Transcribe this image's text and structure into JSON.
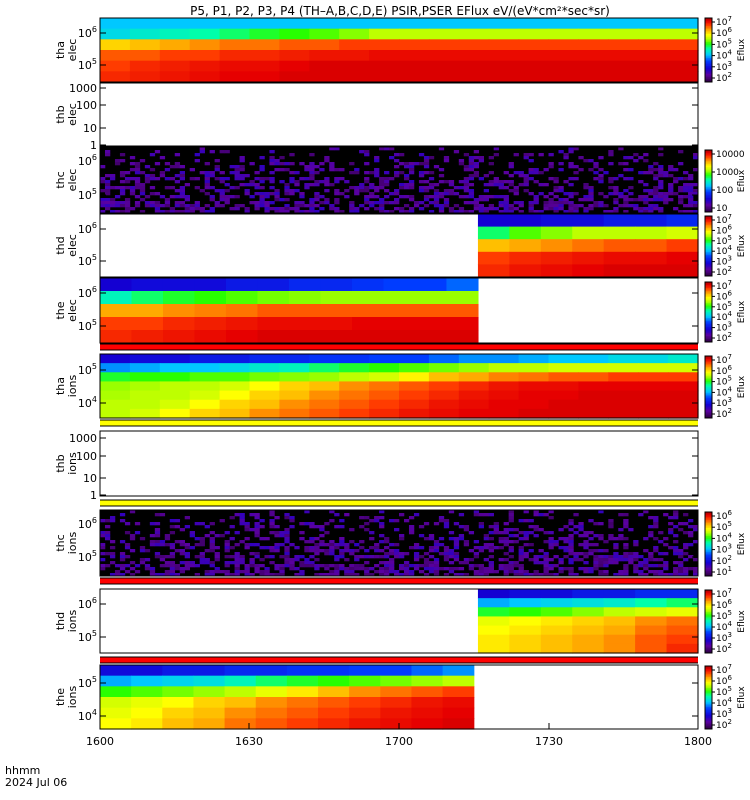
{
  "title": "P5, P1, P2, P3, P4 (TH–A,B,C,D,E) PSIR,PSER EFlux eV/(eV*cm²*sec*sr)",
  "x_axis": {
    "ticks": [
      "1600",
      "1630",
      "1700",
      "1730",
      "1800"
    ],
    "label_line1": "hhmm",
    "label_line2": "2024 Jul 06"
  },
  "chart_data": [
    {
      "type": "heatmap",
      "name": "tha-elec",
      "ylabel": [
        "tha",
        "elec"
      ],
      "ytick_labels": [
        {
          "m": "10",
          "e": "6"
        },
        {
          "m": "10",
          "e": "5"
        }
      ],
      "data_range": [
        0,
        1
      ],
      "colorbar_ticks": [
        {
          "m": "10",
          "e": "7"
        },
        {
          "m": "10",
          "e": "6"
        },
        {
          "m": "10",
          "e": "5"
        },
        {
          "m": "10",
          "e": "4"
        },
        {
          "m": "10",
          "e": "3"
        },
        {
          "m": "10",
          "e": "2"
        }
      ],
      "colorbar_label": "Eflux",
      "pattern": "smooth",
      "rows": [
        [
          0.42,
          0.42,
          0.42,
          0.42,
          0.42,
          0.42,
          0.42,
          0.42,
          0.42,
          0.42,
          0.42,
          0.42,
          0.42,
          0.42,
          0.42,
          0.42,
          0.42,
          0.42,
          0.42,
          0.42
        ],
        [
          0.45,
          0.48,
          0.5,
          0.52,
          0.55,
          0.58,
          0.6,
          0.62,
          0.65,
          0.68,
          0.68,
          0.68,
          0.68,
          0.68,
          0.68,
          0.68,
          0.68,
          0.68,
          0.68,
          0.68
        ],
        [
          0.78,
          0.8,
          0.82,
          0.84,
          0.86,
          0.86,
          0.88,
          0.88,
          0.9,
          0.9,
          0.9,
          0.9,
          0.9,
          0.9,
          0.9,
          0.9,
          0.9,
          0.9,
          0.9,
          0.9
        ],
        [
          0.88,
          0.88,
          0.9,
          0.9,
          0.92,
          0.92,
          0.93,
          0.94,
          0.94,
          0.95,
          0.95,
          0.95,
          0.95,
          0.95,
          0.95,
          0.95,
          0.95,
          0.95,
          0.95,
          0.95
        ],
        [
          0.9,
          0.92,
          0.93,
          0.94,
          0.95,
          0.95,
          0.96,
          0.97,
          0.97,
          0.97,
          0.97,
          0.97,
          0.97,
          0.97,
          0.97,
          0.97,
          0.97,
          0.97,
          0.97,
          0.97
        ],
        [
          0.92,
          0.93,
          0.94,
          0.95,
          0.96,
          0.96,
          0.97,
          0.97,
          0.97,
          0.97,
          0.97,
          0.97,
          0.97,
          0.97,
          0.97,
          0.97,
          0.97,
          0.97,
          0.97,
          0.97
        ]
      ]
    },
    {
      "type": "heatmap",
      "name": "thb-elec",
      "ylabel": [
        "thb",
        "elec"
      ],
      "ytick_labels": [
        {
          "m": "1000"
        },
        {
          "m": "100"
        },
        {
          "m": "10"
        },
        {
          "m": "1"
        }
      ],
      "pattern": "empty"
    },
    {
      "type": "heatmap",
      "name": "thc-elec",
      "ylabel": [
        "thc",
        "elec"
      ],
      "ytick_labels": [
        {
          "m": "10",
          "e": "6"
        },
        {
          "m": "10",
          "e": "5"
        }
      ],
      "colorbar_ticks": [
        {
          "m": "10000"
        },
        {
          "m": "1000"
        },
        {
          "m": "100"
        },
        {
          "m": "10"
        }
      ],
      "colorbar_label": "Eflux",
      "pattern": "noise"
    },
    {
      "type": "heatmap",
      "name": "thd-elec",
      "ylabel": [
        "thd",
        "elec"
      ],
      "ytick_labels": [
        {
          "m": "10",
          "e": "6"
        },
        {
          "m": "10",
          "e": "5"
        }
      ],
      "data_range": [
        0.632,
        1
      ],
      "colorbar_ticks": [
        {
          "m": "10",
          "e": "7"
        },
        {
          "m": "10",
          "e": "6"
        },
        {
          "m": "10",
          "e": "5"
        },
        {
          "m": "10",
          "e": "4"
        },
        {
          "m": "10",
          "e": "3"
        },
        {
          "m": "10",
          "e": "2"
        }
      ],
      "colorbar_label": "Eflux",
      "pattern": "smooth",
      "rows": [
        [
          0.2,
          0.2,
          0.22,
          0.22,
          0.25,
          0.25,
          0.28
        ],
        [
          0.55,
          0.62,
          0.65,
          0.68,
          0.68,
          0.68,
          0.7
        ],
        [
          0.8,
          0.82,
          0.84,
          0.86,
          0.88,
          0.88,
          0.9
        ],
        [
          0.9,
          0.92,
          0.93,
          0.94,
          0.95,
          0.95,
          0.96
        ],
        [
          0.92,
          0.94,
          0.95,
          0.96,
          0.97,
          0.97,
          0.97
        ]
      ]
    },
    {
      "type": "heatmap",
      "name": "the-elec",
      "ylabel": [
        "the",
        "elec"
      ],
      "ytick_labels": [
        {
          "m": "10",
          "e": "6"
        },
        {
          "m": "10",
          "e": "5"
        }
      ],
      "data_range": [
        0,
        0.632
      ],
      "colorbar_ticks": [
        {
          "m": "10",
          "e": "7"
        },
        {
          "m": "10",
          "e": "6"
        },
        {
          "m": "10",
          "e": "5"
        },
        {
          "m": "10",
          "e": "4"
        },
        {
          "m": "10",
          "e": "3"
        },
        {
          "m": "10",
          "e": "2"
        }
      ],
      "colorbar_label": "Eflux",
      "pattern": "smooth",
      "rows": [
        [
          0.2,
          0.22,
          0.22,
          0.22,
          0.25,
          0.25,
          0.28,
          0.28,
          0.3,
          0.32,
          0.32,
          0.35
        ],
        [
          0.5,
          0.55,
          0.58,
          0.6,
          0.62,
          0.64,
          0.65,
          0.66,
          0.66,
          0.66,
          0.66,
          0.66
        ],
        [
          0.82,
          0.82,
          0.84,
          0.85,
          0.86,
          0.88,
          0.88,
          0.88,
          0.88,
          0.88,
          0.88,
          0.88
        ],
        [
          0.9,
          0.9,
          0.92,
          0.93,
          0.94,
          0.95,
          0.95,
          0.95,
          0.96,
          0.96,
          0.96,
          0.96
        ],
        [
          0.92,
          0.93,
          0.94,
          0.95,
          0.96,
          0.97,
          0.97,
          0.97,
          0.97,
          0.97,
          0.97,
          0.97
        ]
      ]
    },
    {
      "type": "heatmap",
      "name": "tha-ions",
      "ylabel": [
        "tha",
        "ions"
      ],
      "ytick_labels": [
        {
          "m": "10",
          "e": "5"
        },
        {
          "m": "10",
          "e": "4"
        }
      ],
      "data_range": [
        0,
        1
      ],
      "colorbar_ticks": [
        {
          "m": "10",
          "e": "7"
        },
        {
          "m": "10",
          "e": "6"
        },
        {
          "m": "10",
          "e": "5"
        },
        {
          "m": "10",
          "e": "4"
        },
        {
          "m": "10",
          "e": "3"
        },
        {
          "m": "10",
          "e": "2"
        }
      ],
      "colorbar_label": "Eflux",
      "pattern": "smooth",
      "rows": [
        [
          0.2,
          0.22,
          0.22,
          0.25,
          0.25,
          0.28,
          0.28,
          0.3,
          0.3,
          0.32,
          0.32,
          0.35,
          0.38,
          0.38,
          0.4,
          0.42,
          0.42,
          0.45,
          0.45,
          0.48
        ],
        [
          0.38,
          0.4,
          0.42,
          0.42,
          0.45,
          0.48,
          0.5,
          0.55,
          0.58,
          0.6,
          0.62,
          0.64,
          0.66,
          0.68,
          0.68,
          0.7,
          0.7,
          0.7,
          0.7,
          0.7
        ],
        [
          0.58,
          0.6,
          0.6,
          0.62,
          0.62,
          0.64,
          0.65,
          0.66,
          0.68,
          0.7,
          0.75,
          0.8,
          0.82,
          0.85,
          0.86,
          0.88,
          0.88,
          0.9,
          0.9,
          0.9
        ],
        [
          0.66,
          0.67,
          0.68,
          0.68,
          0.7,
          0.74,
          0.78,
          0.8,
          0.84,
          0.86,
          0.88,
          0.9,
          0.92,
          0.94,
          0.95,
          0.95,
          0.96,
          0.96,
          0.96,
          0.96
        ],
        [
          0.67,
          0.68,
          0.68,
          0.7,
          0.74,
          0.78,
          0.8,
          0.84,
          0.86,
          0.88,
          0.9,
          0.92,
          0.94,
          0.95,
          0.96,
          0.96,
          0.97,
          0.97,
          0.97,
          0.97
        ],
        [
          0.68,
          0.68,
          0.7,
          0.74,
          0.78,
          0.8,
          0.84,
          0.86,
          0.88,
          0.9,
          0.92,
          0.94,
          0.95,
          0.96,
          0.96,
          0.97,
          0.97,
          0.97,
          0.97,
          0.97
        ],
        [
          0.68,
          0.7,
          0.74,
          0.78,
          0.8,
          0.84,
          0.86,
          0.88,
          0.9,
          0.92,
          0.94,
          0.95,
          0.96,
          0.96,
          0.97,
          0.97,
          0.97,
          0.97,
          0.97,
          0.97
        ]
      ]
    },
    {
      "type": "heatmap",
      "name": "thb-ions",
      "ylabel": [
        "thb",
        "ions"
      ],
      "ytick_labels": [
        {
          "m": "1000"
        },
        {
          "m": "100"
        },
        {
          "m": "10"
        },
        {
          "m": "1"
        }
      ],
      "pattern": "empty"
    },
    {
      "type": "heatmap",
      "name": "thc-ions",
      "ylabel": [
        "thc",
        "ions"
      ],
      "ytick_labels": [
        {
          "m": "10",
          "e": "6"
        },
        {
          "m": "10",
          "e": "5"
        }
      ],
      "colorbar_ticks": [
        {
          "m": "10",
          "e": "6"
        },
        {
          "m": "10",
          "e": "5"
        },
        {
          "m": "10",
          "e": "4"
        },
        {
          "m": "10",
          "e": "3"
        },
        {
          "m": "10",
          "e": "2"
        },
        {
          "m": "10",
          "e": "1"
        }
      ],
      "colorbar_label": "Eflux",
      "pattern": "noise"
    },
    {
      "type": "heatmap",
      "name": "thd-ions",
      "ylabel": [
        "thd",
        "ions"
      ],
      "ytick_labels": [
        {
          "m": "10",
          "e": "6"
        },
        {
          "m": "10",
          "e": "5"
        }
      ],
      "data_range": [
        0.632,
        1
      ],
      "colorbar_ticks": [
        {
          "m": "10",
          "e": "7"
        },
        {
          "m": "10",
          "e": "6"
        },
        {
          "m": "10",
          "e": "5"
        },
        {
          "m": "10",
          "e": "4"
        },
        {
          "m": "10",
          "e": "3"
        },
        {
          "m": "10",
          "e": "2"
        }
      ],
      "colorbar_label": "Eflux",
      "pattern": "smooth",
      "rows": [
        [
          0.2,
          0.22,
          0.22,
          0.25,
          0.25,
          0.28,
          0.28
        ],
        [
          0.4,
          0.42,
          0.44,
          0.46,
          0.48,
          0.52,
          0.55
        ],
        [
          0.58,
          0.6,
          0.62,
          0.65,
          0.68,
          0.7,
          0.72
        ],
        [
          0.72,
          0.74,
          0.76,
          0.78,
          0.8,
          0.84,
          0.86
        ],
        [
          0.74,
          0.76,
          0.78,
          0.8,
          0.82,
          0.86,
          0.88
        ],
        [
          0.76,
          0.78,
          0.8,
          0.82,
          0.84,
          0.88,
          0.9
        ],
        [
          0.76,
          0.78,
          0.8,
          0.82,
          0.84,
          0.88,
          0.92
        ]
      ]
    },
    {
      "type": "heatmap",
      "name": "the-ions",
      "ylabel": [
        "the",
        "ions"
      ],
      "ytick_labels": [
        {
          "m": "10",
          "e": "5"
        },
        {
          "m": "10",
          "e": "4"
        }
      ],
      "data_range": [
        0,
        0.625
      ],
      "colorbar_ticks": [
        {
          "m": "10",
          "e": "7"
        },
        {
          "m": "10",
          "e": "6"
        },
        {
          "m": "10",
          "e": "5"
        },
        {
          "m": "10",
          "e": "4"
        },
        {
          "m": "10",
          "e": "3"
        },
        {
          "m": "10",
          "e": "2"
        }
      ],
      "colorbar_label": "Eflux",
      "pattern": "smooth",
      "rows": [
        [
          0.22,
          0.22,
          0.25,
          0.25,
          0.28,
          0.28,
          0.3,
          0.3,
          0.32,
          0.32,
          0.35,
          0.38
        ],
        [
          0.4,
          0.42,
          0.44,
          0.46,
          0.5,
          0.55,
          0.58,
          0.6,
          0.62,
          0.64,
          0.66,
          0.68
        ],
        [
          0.6,
          0.62,
          0.64,
          0.66,
          0.68,
          0.72,
          0.76,
          0.8,
          0.84,
          0.86,
          0.88,
          0.9
        ],
        [
          0.7,
          0.72,
          0.74,
          0.78,
          0.8,
          0.84,
          0.86,
          0.88,
          0.9,
          0.92,
          0.94,
          0.95
        ],
        [
          0.72,
          0.74,
          0.78,
          0.8,
          0.84,
          0.86,
          0.88,
          0.9,
          0.92,
          0.94,
          0.95,
          0.96
        ],
        [
          0.74,
          0.76,
          0.8,
          0.82,
          0.86,
          0.88,
          0.9,
          0.92,
          0.94,
          0.95,
          0.96,
          0.97
        ]
      ]
    }
  ]
}
